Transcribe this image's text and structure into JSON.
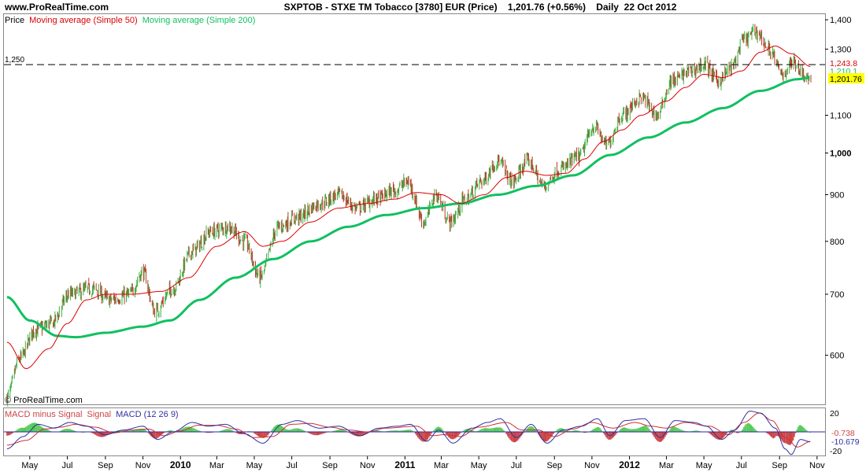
{
  "header": {
    "site": "www.ProRealTime.com",
    "title": "SXPTOB - STXE TM Tobacco [3780] EUR (Price)    1,201.76 (+0.56%)    Daily  22 Oct 2012",
    "watermark": "© ProRealTime.com"
  },
  "colors": {
    "price_up": "#3cb043",
    "price_down": "#c0392b",
    "ma50": "#dd0000",
    "ma200": "#10c060",
    "macd_line": "#3030a0",
    "signal_line": "#d03030",
    "hist_pos": "#55cc55",
    "hist_neg": "#cc4444",
    "zero_line": "#2a2aaa",
    "last_price_bg": "#ffff00"
  },
  "chart_data": [
    {
      "type": "line",
      "panel": "price",
      "legend": {
        "price": "Price",
        "ma50": "Moving average (Simple 50)",
        "ma200": "Moving average (Simple 200)"
      },
      "y_scale": "log",
      "ylim": [
        530,
        1420
      ],
      "y_ticks": [
        {
          "v": 1400,
          "label": "1,400"
        },
        {
          "v": 1300,
          "label": "1,300"
        },
        {
          "v": 1100,
          "label": "1,100"
        },
        {
          "v": 1000,
          "label": "1,000"
        },
        {
          "v": 900,
          "label": "900"
        },
        {
          "v": 800,
          "label": "800"
        },
        {
          "v": 700,
          "label": "700"
        },
        {
          "v": 600,
          "label": "600"
        }
      ],
      "bold_ticks": [
        "1,000"
      ],
      "x_ticks": [
        {
          "date": "2009-05-01",
          "label": "May"
        },
        {
          "date": "2009-07-01",
          "label": "Jul"
        },
        {
          "date": "2009-09-01",
          "label": "Sep"
        },
        {
          "date": "2009-11-01",
          "label": "Nov"
        },
        {
          "date": "2010-01-01",
          "label": "2010",
          "bold": true
        },
        {
          "date": "2010-03-01",
          "label": "Mar"
        },
        {
          "date": "2010-05-01",
          "label": "May"
        },
        {
          "date": "2010-07-01",
          "label": "Jul"
        },
        {
          "date": "2010-09-01",
          "label": "Sep"
        },
        {
          "date": "2010-11-01",
          "label": "Nov"
        },
        {
          "date": "2011-01-01",
          "label": "2011",
          "bold": true
        },
        {
          "date": "2011-03-01",
          "label": "Mar"
        },
        {
          "date": "2011-05-01",
          "label": "May"
        },
        {
          "date": "2011-07-01",
          "label": "Jul"
        },
        {
          "date": "2011-09-01",
          "label": "Sep"
        },
        {
          "date": "2011-11-01",
          "label": "Nov"
        },
        {
          "date": "2012-01-01",
          "label": "2012",
          "bold": true
        },
        {
          "date": "2012-03-01",
          "label": "Mar"
        },
        {
          "date": "2012-05-01",
          "label": "May"
        },
        {
          "date": "2012-07-01",
          "label": "Jul"
        },
        {
          "date": "2012-09-01",
          "label": "Sep"
        },
        {
          "date": "2012-11-01",
          "label": "Nov"
        }
      ],
      "horizontal_line": {
        "value": 1250,
        "label": "1,250"
      },
      "value_tags": [
        {
          "label": "1,243.8",
          "value": 1243.8,
          "color": "#dd0000"
        },
        {
          "label": "1,210.1",
          "value": 1210.1,
          "color": "#10c060"
        },
        {
          "label": "1,201.76",
          "value": 1201.76,
          "color": "#000000",
          "bg": "#ffff00"
        }
      ],
      "close_anchors": [
        [
          "2009-03-25",
          540
        ],
        [
          "2009-04-15",
          595
        ],
        [
          "2009-05-10",
          640
        ],
        [
          "2009-06-05",
          650
        ],
        [
          "2009-07-05",
          700
        ],
        [
          "2009-08-10",
          710
        ],
        [
          "2009-09-10",
          690
        ],
        [
          "2009-10-10",
          700
        ],
        [
          "2009-11-01",
          740
        ],
        [
          "2009-11-20",
          670
        ],
        [
          "2009-12-20",
          710
        ],
        [
          "2010-01-20",
          780
        ],
        [
          "2010-02-20",
          820
        ],
        [
          "2010-03-20",
          830
        ],
        [
          "2010-04-15",
          800
        ],
        [
          "2010-05-10",
          730
        ],
        [
          "2010-06-10",
          830
        ],
        [
          "2010-07-10",
          850
        ],
        [
          "2010-08-15",
          880
        ],
        [
          "2010-09-15",
          900
        ],
        [
          "2010-10-15",
          870
        ],
        [
          "2010-11-15",
          890
        ],
        [
          "2010-12-15",
          910
        ],
        [
          "2011-01-05",
          930
        ],
        [
          "2011-02-01",
          840
        ],
        [
          "2011-02-20",
          900
        ],
        [
          "2011-03-15",
          840
        ],
        [
          "2011-04-10",
          890
        ],
        [
          "2011-05-05",
          930
        ],
        [
          "2011-06-01",
          980
        ],
        [
          "2011-06-25",
          930
        ],
        [
          "2011-07-20",
          980
        ],
        [
          "2011-08-15",
          920
        ],
        [
          "2011-09-10",
          960
        ],
        [
          "2011-10-10",
          990
        ],
        [
          "2011-11-05",
          1070
        ],
        [
          "2011-11-25",
          1020
        ],
        [
          "2011-12-20",
          1100
        ],
        [
          "2012-01-20",
          1150
        ],
        [
          "2012-02-15",
          1100
        ],
        [
          "2012-03-10",
          1200
        ],
        [
          "2012-04-10",
          1230
        ],
        [
          "2012-05-01",
          1250
        ],
        [
          "2012-05-25",
          1200
        ],
        [
          "2012-06-15",
          1240
        ],
        [
          "2012-07-05",
          1330
        ],
        [
          "2012-07-25",
          1360
        ],
        [
          "2012-08-15",
          1300
        ],
        [
          "2012-09-05",
          1220
        ],
        [
          "2012-09-25",
          1260
        ],
        [
          "2012-10-10",
          1220
        ],
        [
          "2012-10-22",
          1201.76
        ]
      ],
      "ma50_anchors": [
        [
          "2009-03-25",
          620
        ],
        [
          "2009-04-25",
          580
        ],
        [
          "2009-06-01",
          610
        ],
        [
          "2009-07-01",
          650
        ],
        [
          "2009-08-01",
          690
        ],
        [
          "2009-09-01",
          700
        ],
        [
          "2009-10-15",
          700
        ],
        [
          "2009-12-01",
          705
        ],
        [
          "2010-01-15",
          730
        ],
        [
          "2010-03-01",
          790
        ],
        [
          "2010-04-15",
          820
        ],
        [
          "2010-05-15",
          790
        ],
        [
          "2010-06-15",
          800
        ],
        [
          "2010-08-01",
          840
        ],
        [
          "2010-09-15",
          870
        ],
        [
          "2010-11-01",
          880
        ],
        [
          "2010-12-15",
          890
        ],
        [
          "2011-01-20",
          905
        ],
        [
          "2011-03-01",
          900
        ],
        [
          "2011-04-01",
          880
        ],
        [
          "2011-05-10",
          900
        ],
        [
          "2011-06-15",
          940
        ],
        [
          "2011-07-15",
          955
        ],
        [
          "2011-08-20",
          945
        ],
        [
          "2011-09-20",
          950
        ],
        [
          "2011-10-20",
          985
        ],
        [
          "2011-11-20",
          1030
        ],
        [
          "2011-12-20",
          1060
        ],
        [
          "2012-01-20",
          1100
        ],
        [
          "2012-03-01",
          1140
        ],
        [
          "2012-04-01",
          1180
        ],
        [
          "2012-05-01",
          1220
        ],
        [
          "2012-06-01",
          1210
        ],
        [
          "2012-07-01",
          1230
        ],
        [
          "2012-08-01",
          1290
        ],
        [
          "2012-08-25",
          1310
        ],
        [
          "2012-09-20",
          1285
        ],
        [
          "2012-10-22",
          1243.8
        ]
      ],
      "ma200_anchors": [
        [
          "2009-03-25",
          695
        ],
        [
          "2009-05-01",
          655
        ],
        [
          "2009-06-15",
          630
        ],
        [
          "2009-07-15",
          628
        ],
        [
          "2009-09-01",
          635
        ],
        [
          "2009-11-01",
          645
        ],
        [
          "2009-12-15",
          655
        ],
        [
          "2010-02-01",
          690
        ],
        [
          "2010-04-01",
          730
        ],
        [
          "2010-06-01",
          765
        ],
        [
          "2010-08-01",
          800
        ],
        [
          "2010-10-01",
          830
        ],
        [
          "2010-12-01",
          855
        ],
        [
          "2011-02-01",
          870
        ],
        [
          "2011-04-01",
          880
        ],
        [
          "2011-06-01",
          900
        ],
        [
          "2011-08-01",
          920
        ],
        [
          "2011-10-01",
          945
        ],
        [
          "2011-12-01",
          995
        ],
        [
          "2012-02-01",
          1040
        ],
        [
          "2012-04-01",
          1080
        ],
        [
          "2012-06-01",
          1120
        ],
        [
          "2012-08-01",
          1170
        ],
        [
          "2012-10-01",
          1205
        ],
        [
          "2012-10-22",
          1210.1
        ]
      ]
    },
    {
      "type": "line",
      "panel": "macd",
      "legend": {
        "hist": "MACD minus Signal",
        "signal": "Signal",
        "macd": "MACD (12 26 9)"
      },
      "ylim": [
        -25,
        25
      ],
      "y_ticks": [
        {
          "v": 20,
          "label": "20"
        },
        {
          "v": -20,
          "label": "-20"
        }
      ],
      "value_tags": [
        {
          "label": "-0.738",
          "value": -0.738,
          "color": "#cc4444"
        },
        {
          "label": "-10.679",
          "value": -10.679,
          "color": "#3030a0"
        }
      ],
      "macd_anchors": [
        [
          "2009-03-25",
          -18
        ],
        [
          "2009-04-20",
          -5
        ],
        [
          "2009-05-15",
          8
        ],
        [
          "2009-06-10",
          4
        ],
        [
          "2009-07-05",
          10
        ],
        [
          "2009-08-01",
          6
        ],
        [
          "2009-09-01",
          -3
        ],
        [
          "2009-10-01",
          2
        ],
        [
          "2009-11-01",
          6
        ],
        [
          "2009-11-25",
          -8
        ],
        [
          "2009-12-20",
          0
        ],
        [
          "2010-01-20",
          10
        ],
        [
          "2010-02-15",
          6
        ],
        [
          "2010-03-15",
          8
        ],
        [
          "2010-04-15",
          -2
        ],
        [
          "2010-05-15",
          -12
        ],
        [
          "2010-06-15",
          8
        ],
        [
          "2010-07-10",
          12
        ],
        [
          "2010-08-15",
          4
        ],
        [
          "2010-09-15",
          6
        ],
        [
          "2010-10-20",
          -4
        ],
        [
          "2010-11-20",
          4
        ],
        [
          "2010-12-20",
          6
        ],
        [
          "2011-01-10",
          8
        ],
        [
          "2011-02-05",
          -10
        ],
        [
          "2011-02-25",
          2
        ],
        [
          "2011-03-20",
          -12
        ],
        [
          "2011-04-20",
          4
        ],
        [
          "2011-05-15",
          10
        ],
        [
          "2011-06-05",
          14
        ],
        [
          "2011-07-01",
          -6
        ],
        [
          "2011-07-25",
          8
        ],
        [
          "2011-08-20",
          -12
        ],
        [
          "2011-09-15",
          2
        ],
        [
          "2011-10-15",
          6
        ],
        [
          "2011-11-10",
          14
        ],
        [
          "2011-11-30",
          -4
        ],
        [
          "2011-12-25",
          12
        ],
        [
          "2012-01-25",
          14
        ],
        [
          "2012-02-20",
          -6
        ],
        [
          "2012-03-15",
          12
        ],
        [
          "2012-04-15",
          10
        ],
        [
          "2012-05-05",
          6
        ],
        [
          "2012-05-30",
          -8
        ],
        [
          "2012-06-20",
          2
        ],
        [
          "2012-07-15",
          22
        ],
        [
          "2012-08-01",
          20
        ],
        [
          "2012-08-25",
          4
        ],
        [
          "2012-09-10",
          -18
        ],
        [
          "2012-09-20",
          -24
        ],
        [
          "2012-10-05",
          -8
        ],
        [
          "2012-10-22",
          -10.679
        ]
      ],
      "signal_anchors": [
        [
          "2009-03-25",
          -14
        ],
        [
          "2009-04-25",
          -9
        ],
        [
          "2009-05-25",
          3
        ],
        [
          "2009-06-20",
          5
        ],
        [
          "2009-07-15",
          8
        ],
        [
          "2009-08-15",
          5
        ],
        [
          "2009-09-15",
          -1
        ],
        [
          "2009-10-15",
          2
        ],
        [
          "2009-11-10",
          3
        ],
        [
          "2009-12-05",
          -4
        ],
        [
          "2010-01-01",
          1
        ],
        [
          "2010-01-30",
          7
        ],
        [
          "2010-03-01",
          7
        ],
        [
          "2010-04-01",
          3
        ],
        [
          "2010-05-01",
          -6
        ],
        [
          "2010-05-30",
          -5
        ],
        [
          "2010-06-30",
          8
        ],
        [
          "2010-07-30",
          9
        ],
        [
          "2010-09-01",
          5
        ],
        [
          "2010-10-01",
          2
        ],
        [
          "2010-11-01",
          0
        ],
        [
          "2010-12-01",
          4
        ],
        [
          "2011-01-20",
          6
        ],
        [
          "2011-02-15",
          -4
        ],
        [
          "2011-03-05",
          -3
        ],
        [
          "2011-04-01",
          -5
        ],
        [
          "2011-05-01",
          5
        ],
        [
          "2011-06-15",
          10
        ],
        [
          "2011-07-10",
          2
        ],
        [
          "2011-08-05",
          2
        ],
        [
          "2011-09-01",
          -5
        ],
        [
          "2011-10-01",
          3
        ],
        [
          "2011-11-01",
          10
        ],
        [
          "2011-12-05",
          4
        ],
        [
          "2012-01-10",
          10
        ],
        [
          "2012-02-05",
          6
        ],
        [
          "2012-03-01",
          4
        ],
        [
          "2012-04-01",
          10
        ],
        [
          "2012-05-10",
          6
        ],
        [
          "2012-06-10",
          -3
        ],
        [
          "2012-07-05",
          10
        ],
        [
          "2012-07-30",
          20
        ],
        [
          "2012-08-20",
          12
        ],
        [
          "2012-09-10",
          -6
        ],
        [
          "2012-09-30",
          -16
        ],
        [
          "2012-10-22",
          -9.941
        ]
      ]
    }
  ]
}
